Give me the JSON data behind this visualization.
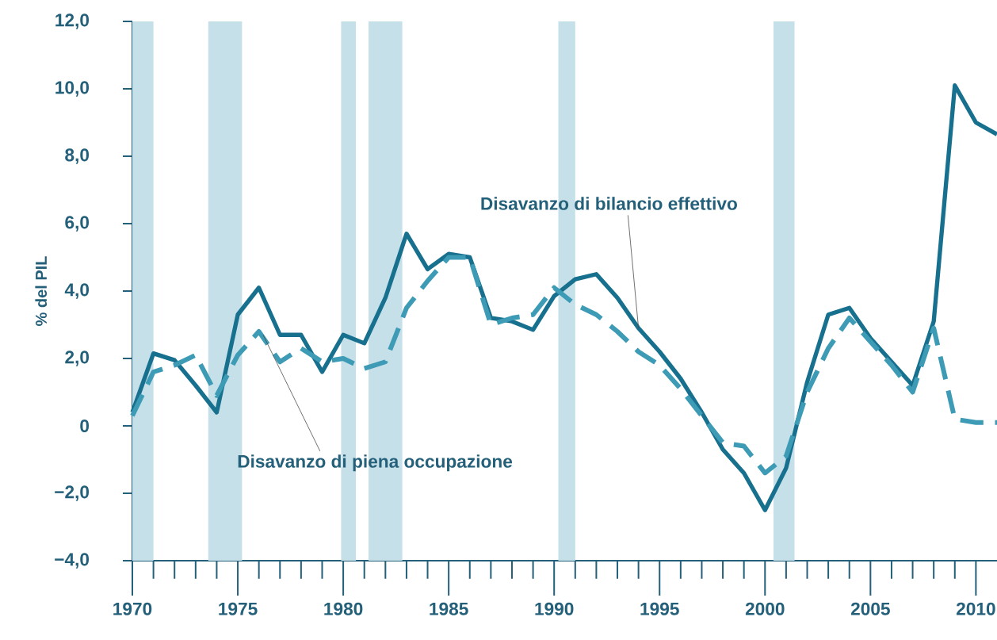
{
  "chart_data": {
    "type": "line",
    "ylabel": "% del PIL",
    "x": [
      1970,
      1971,
      1972,
      1973,
      1974,
      1975,
      1976,
      1977,
      1978,
      1979,
      1980,
      1981,
      1982,
      1983,
      1984,
      1985,
      1986,
      1987,
      1988,
      1989,
      1990,
      1991,
      1992,
      1993,
      1994,
      1995,
      1996,
      1997,
      1998,
      1999,
      2000,
      2001,
      2002,
      2003,
      2004,
      2005,
      2006,
      2007,
      2008,
      2009,
      2010,
      2011
    ],
    "series": [
      {
        "color": "#17708e",
        "line_style": "solid",
        "values": [
          0.4,
          2.15,
          1.95,
          1.2,
          0.4,
          3.3,
          4.1,
          2.7,
          2.7,
          1.6,
          2.7,
          2.45,
          3.8,
          5.7,
          4.65,
          5.1,
          5.0,
          3.2,
          3.1,
          2.85,
          3.85,
          4.35,
          4.5,
          3.8,
          2.9,
          2.2,
          1.4,
          0.4,
          -0.7,
          -1.4,
          -2.5,
          -1.25,
          1.3,
          3.3,
          3.5,
          2.6,
          1.9,
          1.2,
          3.1,
          10.1,
          9.0,
          8.65
        ]
      },
      {
        "color": "#3d9bb6",
        "line_style": "dashed",
        "values": [
          0.3,
          1.6,
          1.8,
          2.1,
          0.9,
          2.1,
          2.8,
          1.9,
          2.3,
          1.9,
          2.0,
          1.7,
          1.9,
          3.5,
          4.3,
          5.0,
          5.0,
          3.0,
          3.2,
          3.3,
          4.1,
          3.6,
          3.3,
          2.8,
          2.2,
          1.8,
          1.1,
          0.3,
          -0.5,
          -0.6,
          -1.4,
          -0.9,
          1.0,
          2.3,
          3.2,
          2.5,
          1.8,
          1.0,
          2.9,
          0.2,
          0.1,
          0.1
        ]
      }
    ],
    "annotations": [
      {
        "text": "Disavanzo di bilancio effettivo",
        "x": 1994,
        "y": 2.9
      },
      {
        "text": "Disavanzo di piena occupazione",
        "x": 1976.2,
        "y": 2.7
      }
    ],
    "bands": [
      {
        "axis": "x",
        "from": 1970,
        "to": 1971,
        "color": "#c6e0ea"
      },
      {
        "axis": "x",
        "from": 1973.6,
        "to": 1975.2,
        "color": "#c6e0ea"
      },
      {
        "axis": "x",
        "from": 1979.9,
        "to": 1980.6,
        "color": "#c6e0ea"
      },
      {
        "axis": "x",
        "from": 1981.2,
        "to": 1982.8,
        "color": "#c6e0ea"
      },
      {
        "axis": "x",
        "from": 1990.2,
        "to": 1991.0,
        "color": "#c6e0ea"
      },
      {
        "axis": "x",
        "from": 2000.4,
        "to": 2001.4,
        "color": "#c6e0ea"
      }
    ],
    "xlim": [
      1970,
      2011
    ],
    "ylim": [
      -4,
      12
    ],
    "yticks": [
      {
        "value": -4,
        "label": "−4,0"
      },
      {
        "value": -2,
        "label": "−2,0"
      },
      0,
      {
        "value": 2,
        "label": "2,0"
      },
      {
        "value": 4,
        "label": "4,0"
      },
      {
        "value": 6,
        "label": "6,0"
      },
      {
        "value": 8,
        "label": "8,0"
      },
      {
        "value": 10,
        "label": "10,0"
      },
      {
        "value": 12,
        "label": "12,0"
      }
    ],
    "xticks": [
      1970,
      1975,
      1980,
      1985,
      1990,
      1995,
      2000,
      2005,
      2010
    ],
    "grid": false
  }
}
